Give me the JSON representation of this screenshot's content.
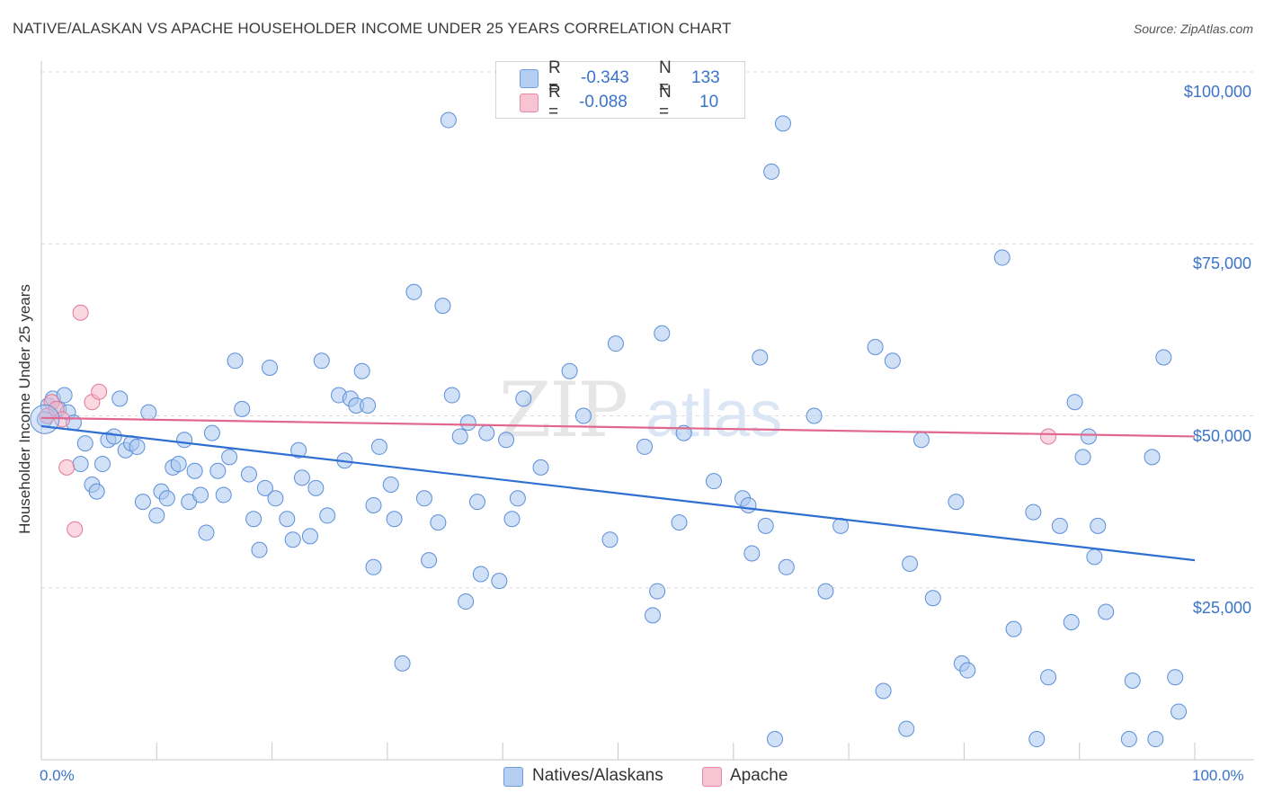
{
  "header": {
    "title": "NATIVE/ALASKAN VS APACHE HOUSEHOLDER INCOME UNDER 25 YEARS CORRELATION CHART",
    "source": "Source: ZipAtlas.com"
  },
  "colors": {
    "blue_fill": "#a9c6f0",
    "blue_stroke": "#5b8fd9",
    "blue_line": "#2f6fd1",
    "pink_fill": "#f6b6c8",
    "pink_stroke": "#e07a9a",
    "pink_line": "#e0678e",
    "axis_text": "#3a73c9",
    "grid": "#dddddd"
  },
  "legend": {
    "r_label": "R =",
    "n_label": "N =",
    "series": [
      {
        "name": "Natives/Alaskans",
        "r": "-0.343",
        "n": "133"
      },
      {
        "name": "Apache",
        "r": "-0.088",
        "n": "10"
      }
    ]
  },
  "watermark": {
    "part1": "ZIP",
    "part2": "atlas"
  },
  "chart_data": {
    "type": "scatter",
    "title": "NATIVE/ALASKAN VS APACHE HOUSEHOLDER INCOME UNDER 25 YEARS CORRELATION CHART",
    "xlabel": "",
    "ylabel": "Householder Income Under 25 years",
    "xlim": [
      0,
      100
    ],
    "ylim": [
      0,
      105000
    ],
    "x_tick_labels": [
      "0.0%",
      "100.0%"
    ],
    "y_ticks": [
      25000,
      50000,
      75000,
      100000
    ],
    "y_tick_labels": [
      "$25,000",
      "$50,000",
      "$75,000",
      "$100,000"
    ],
    "series": [
      {
        "name": "Natives/Alaskans",
        "trend": {
          "x": [
            0,
            100
          ],
          "y": [
            48500,
            29000
          ]
        },
        "points": [
          [
            0.3,
            49500
          ],
          [
            0.6,
            51500
          ],
          [
            1.0,
            52500
          ],
          [
            1.5,
            51000
          ],
          [
            2.0,
            53000
          ],
          [
            2.3,
            50500
          ],
          [
            2.8,
            49000
          ],
          [
            3.4,
            43000
          ],
          [
            3.8,
            46000
          ],
          [
            4.4,
            40000
          ],
          [
            4.8,
            39000
          ],
          [
            5.3,
            43000
          ],
          [
            5.8,
            46500
          ],
          [
            6.3,
            47000
          ],
          [
            6.8,
            52500
          ],
          [
            7.3,
            45000
          ],
          [
            7.8,
            46000
          ],
          [
            8.3,
            45500
          ],
          [
            8.8,
            37500
          ],
          [
            9.3,
            50500
          ],
          [
            10.0,
            35500
          ],
          [
            10.4,
            39000
          ],
          [
            10.9,
            38000
          ],
          [
            11.4,
            42500
          ],
          [
            11.9,
            43000
          ],
          [
            12.4,
            46500
          ],
          [
            12.8,
            37500
          ],
          [
            13.3,
            42000
          ],
          [
            13.8,
            38500
          ],
          [
            14.3,
            33000
          ],
          [
            14.8,
            47500
          ],
          [
            15.3,
            42000
          ],
          [
            15.8,
            38500
          ],
          [
            16.3,
            44000
          ],
          [
            16.8,
            58000
          ],
          [
            17.4,
            51000
          ],
          [
            18.0,
            41500
          ],
          [
            18.4,
            35000
          ],
          [
            18.9,
            30500
          ],
          [
            19.4,
            39500
          ],
          [
            19.8,
            57000
          ],
          [
            20.3,
            38000
          ],
          [
            21.3,
            35000
          ],
          [
            21.8,
            32000
          ],
          [
            22.3,
            45000
          ],
          [
            22.6,
            41000
          ],
          [
            23.3,
            32500
          ],
          [
            23.8,
            39500
          ],
          [
            24.3,
            58000
          ],
          [
            24.8,
            35500
          ],
          [
            25.8,
            53000
          ],
          [
            26.3,
            43500
          ],
          [
            26.8,
            52500
          ],
          [
            27.3,
            51500
          ],
          [
            27.8,
            56500
          ],
          [
            28.3,
            51500
          ],
          [
            28.8,
            28000
          ],
          [
            28.8,
            37000
          ],
          [
            29.3,
            45500
          ],
          [
            30.3,
            40000
          ],
          [
            30.6,
            35000
          ],
          [
            31.3,
            14000
          ],
          [
            32.3,
            68000
          ],
          [
            33.2,
            38000
          ],
          [
            33.6,
            29000
          ],
          [
            34.4,
            34500
          ],
          [
            34.8,
            66000
          ],
          [
            35.3,
            93000
          ],
          [
            35.6,
            53000
          ],
          [
            36.3,
            47000
          ],
          [
            36.8,
            23000
          ],
          [
            37.0,
            49000
          ],
          [
            37.8,
            37500
          ],
          [
            38.1,
            27000
          ],
          [
            38.6,
            47500
          ],
          [
            39.7,
            26000
          ],
          [
            40.3,
            46500
          ],
          [
            40.8,
            35000
          ],
          [
            41.3,
            38000
          ],
          [
            41.8,
            52500
          ],
          [
            43.3,
            42500
          ],
          [
            45.8,
            56500
          ],
          [
            47.0,
            50000
          ],
          [
            49.3,
            32000
          ],
          [
            49.8,
            60500
          ],
          [
            52.3,
            45500
          ],
          [
            53.0,
            21000
          ],
          [
            53.4,
            24500
          ],
          [
            53.8,
            62000
          ],
          [
            55.3,
            34500
          ],
          [
            55.7,
            47500
          ],
          [
            58.3,
            40500
          ],
          [
            60.8,
            38000
          ],
          [
            61.3,
            37000
          ],
          [
            61.6,
            30000
          ],
          [
            62.3,
            58500
          ],
          [
            62.8,
            34000
          ],
          [
            63.3,
            85500
          ],
          [
            63.6,
            3000
          ],
          [
            64.3,
            92500
          ],
          [
            64.6,
            28000
          ],
          [
            67.0,
            50000
          ],
          [
            68.0,
            24500
          ],
          [
            69.3,
            34000
          ],
          [
            72.3,
            60000
          ],
          [
            73.0,
            10000
          ],
          [
            73.8,
            58000
          ],
          [
            75.0,
            4500
          ],
          [
            75.3,
            28500
          ],
          [
            76.3,
            46500
          ],
          [
            77.3,
            23500
          ],
          [
            79.3,
            37500
          ],
          [
            79.8,
            14000
          ],
          [
            80.3,
            13000
          ],
          [
            83.3,
            73000
          ],
          [
            84.3,
            19000
          ],
          [
            86.0,
            36000
          ],
          [
            86.3,
            3000
          ],
          [
            87.3,
            12000
          ],
          [
            88.3,
            34000
          ],
          [
            89.3,
            20000
          ],
          [
            89.6,
            52000
          ],
          [
            90.3,
            44000
          ],
          [
            90.8,
            47000
          ],
          [
            91.3,
            29500
          ],
          [
            91.6,
            34000
          ],
          [
            92.3,
            21500
          ],
          [
            94.3,
            3000
          ],
          [
            94.6,
            11500
          ],
          [
            96.3,
            44000
          ],
          [
            96.6,
            3000
          ],
          [
            97.3,
            58500
          ],
          [
            98.3,
            12000
          ],
          [
            98.6,
            7000
          ]
        ]
      },
      {
        "name": "Apache",
        "trend": {
          "x": [
            0,
            100
          ],
          "y": [
            49700,
            47000
          ]
        },
        "points": [
          [
            0.5,
            50000
          ],
          [
            0.9,
            52000
          ],
          [
            1.3,
            51000
          ],
          [
            1.8,
            49500
          ],
          [
            3.4,
            65000
          ],
          [
            2.2,
            42500
          ],
          [
            2.9,
            33500
          ],
          [
            4.4,
            52000
          ],
          [
            5.0,
            53500
          ],
          [
            87.3,
            47000
          ]
        ]
      }
    ]
  }
}
